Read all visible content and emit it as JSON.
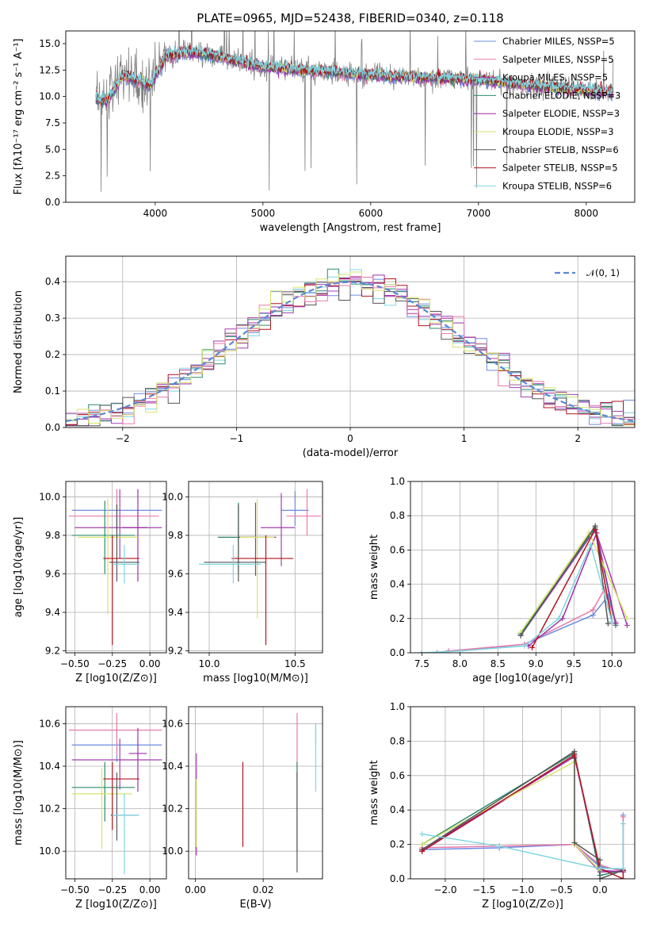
{
  "colors": [
    "#6c8ce0",
    "#e97aa9",
    "#a43fb0",
    "#2d8c6c",
    "#9c2fa6",
    "#d7e36b",
    "#555555",
    "#b3141e",
    "#7fd6df"
  ],
  "chart_data": [
    {
      "type": "line",
      "title": "PLATE=0965, MJD=52438, FIBERID=0340, z=0.118",
      "xlabel": "wavelength [Angstrom, rest frame]",
      "ylabel": "Flux [fλ10⁻¹⁷ erg cm⁻² s⁻¹ A⁻¹]",
      "xlim": [
        3170,
        8450
      ],
      "ylim": [
        0,
        16.2
      ],
      "xticks": [
        "4000",
        "5000",
        "6000",
        "7000",
        "8000"
      ],
      "yticks": [
        "0.0",
        "2.5",
        "5.0",
        "7.5",
        "10.0",
        "12.5",
        "15.0"
      ],
      "grid": false,
      "legend_position": "top-right",
      "legend": [
        "Chabrier MILES, NSSP=5",
        "Salpeter MILES, NSSP=5",
        "Kroupa MILES, NSSP=5",
        "Chabrier ELODIE, NSSP=3",
        "Salpeter ELODIE, NSSP=3",
        "Kroupa ELODIE, NSSP=3",
        "Chabrier STELIB, NSSP=6",
        "Salpeter STELIB, NSSP=5",
        "Kroupa STELIB, NSSP=6"
      ],
      "spectrum_anchors": {
        "wavelength": [
          3450,
          3550,
          3700,
          3850,
          3950,
          4100,
          4300,
          4500,
          5000,
          5500,
          6000,
          6500,
          7000,
          7500,
          8000,
          8250
        ],
        "flux": [
          9.8,
          9.6,
          12.0,
          11.5,
          11.0,
          13.8,
          14.2,
          14.0,
          12.8,
          12.4,
          12.0,
          11.8,
          11.6,
          11.0,
          10.6,
          10.4
        ]
      }
    },
    {
      "type": "histogram",
      "xlabel": "(data-model)/error",
      "ylabel": "Normed distribution",
      "xlim": [
        -2.5,
        2.5
      ],
      "ylim": [
        0,
        0.47
      ],
      "xticks": [
        "−2",
        "−1",
        "0",
        "1",
        "2"
      ],
      "yticks": [
        "0.0",
        "0.1",
        "0.2",
        "0.3",
        "0.4"
      ],
      "grid": true,
      "legend_position": "top-right",
      "legend": [
        "𝒩(0, 1)"
      ],
      "bins": 50,
      "reference_curve": "normal(0,1)"
    },
    {
      "type": "errorbar",
      "xlabel": "Z [log10(Z/Z⊙)]",
      "ylabel": "age  [log10(age/yr)]",
      "xlim": [
        -0.56,
        0.11
      ],
      "ylim": [
        9.19,
        10.08
      ],
      "xticks": [
        "−0.50",
        "−0.25",
        "0.00"
      ],
      "yticks": [
        "9.2",
        "9.4",
        "9.6",
        "9.8",
        "10.0"
      ],
      "grid": true,
      "points": [
        {
          "x": -0.22,
          "y": 9.93,
          "xerr": [
            0.3,
            0.3
          ],
          "yerr": [
            0.1,
            0.1
          ]
        },
        {
          "x": -0.22,
          "y": 9.9,
          "xerr": [
            0.32,
            0.28
          ],
          "yerr": [
            0.1,
            0.14
          ]
        },
        {
          "x": -0.2,
          "y": 9.84,
          "xerr": [
            0.3,
            0.28
          ],
          "yerr": [
            0.16,
            0.2
          ]
        },
        {
          "x": -0.3,
          "y": 9.8,
          "xerr": [
            0.22,
            0.2
          ],
          "yerr": [
            0.2,
            0.18
          ]
        },
        {
          "x": -0.08,
          "y": 9.84,
          "xerr": [
            0.1,
            0.06
          ],
          "yerr": [
            0.28,
            0.2
          ]
        },
        {
          "x": -0.28,
          "y": 9.79,
          "xerr": [
            0.2,
            0.2
          ],
          "yerr": [
            0.4,
            0.2
          ]
        },
        {
          "x": -0.22,
          "y": 9.66,
          "xerr": [
            0.05,
            0.15
          ],
          "yerr": [
            0.1,
            0.3
          ]
        },
        {
          "x": -0.25,
          "y": 9.68,
          "xerr": [
            0.06,
            0.18
          ],
          "yerr": [
            0.45,
            0.12
          ]
        },
        {
          "x": -0.17,
          "y": 9.65,
          "xerr": [
            0.08,
            0.1
          ],
          "yerr": [
            0.1,
            0.1
          ]
        }
      ]
    },
    {
      "type": "errorbar",
      "xlabel": "mass [log10(M/M⊙)]",
      "ylabel": "",
      "xlim": [
        9.88,
        10.66
      ],
      "ylim": [
        9.19,
        10.08
      ],
      "xticks": [
        "10.0",
        "10.5"
      ],
      "yticks": [
        "9.2",
        "9.4",
        "9.6",
        "9.8",
        "10.0"
      ],
      "grid": true,
      "points": [
        {
          "x": 10.5,
          "y": 9.93,
          "xerr": [
            0.08,
            0.08
          ],
          "yerr": [
            0.08,
            0.1
          ]
        },
        {
          "x": 10.57,
          "y": 9.9,
          "xerr": [
            0.12,
            0.08
          ],
          "yerr": [
            0.1,
            0.14
          ]
        },
        {
          "x": 10.42,
          "y": 9.84,
          "xerr": [
            0.12,
            0.08
          ],
          "yerr": [
            0.2,
            0.18
          ]
        },
        {
          "x": 10.17,
          "y": 9.79,
          "xerr": [
            0.12,
            0.1
          ],
          "yerr": [
            0.18,
            0.18
          ]
        },
        {
          "x": 10.27,
          "y": 9.79,
          "xerr": [
            0.1,
            0.12
          ],
          "yerr": [
            0.2,
            0.18
          ]
        },
        {
          "x": 10.28,
          "y": 9.79,
          "xerr": [
            0.1,
            0.1
          ],
          "yerr": [
            0.42,
            0.2
          ]
        },
        {
          "x": 10.17,
          "y": 9.66,
          "xerr": [
            0.2,
            0.16
          ],
          "yerr": [
            0.1,
            0.3
          ]
        },
        {
          "x": 10.33,
          "y": 9.68,
          "xerr": [
            0.2,
            0.16
          ],
          "yerr": [
            0.45,
            0.12
          ]
        },
        {
          "x": 10.14,
          "y": 9.65,
          "xerr": [
            0.2,
            0.16
          ],
          "yerr": [
            0.1,
            0.1
          ]
        }
      ]
    },
    {
      "type": "line",
      "xlabel": "age  [log10(age/yr)]",
      "ylabel": "mass weight",
      "xlim": [
        7.35,
        10.3
      ],
      "ylim": [
        0,
        1.0
      ],
      "xticks": [
        "7.5",
        "8.0",
        "8.5",
        "9.0",
        "9.5",
        "10.0"
      ],
      "yticks": [
        "0.0",
        "0.2",
        "0.4",
        "0.6",
        "0.8",
        "1.0"
      ],
      "grid": true,
      "series": [
        {
          "x": [
            7.5,
            7.7,
            7.85,
            8.0,
            8.85,
            9.75,
            9.95,
            10.05
          ],
          "y": [
            0.0,
            0.0,
            0.01,
            0.01,
            0.05,
            0.22,
            0.33,
            0.18
          ]
        },
        {
          "x": [
            7.5,
            7.7,
            7.85,
            8.85,
            9.75,
            9.9,
            10.05
          ],
          "y": [
            0.0,
            0.0,
            0.01,
            0.05,
            0.25,
            0.37,
            0.18
          ]
        },
        {
          "x": [
            8.8,
            9.78,
            10.2
          ],
          "y": [
            0.1,
            0.72,
            0.16
          ]
        },
        {
          "x": [
            8.8,
            9.78,
            10.05
          ],
          "y": [
            0.11,
            0.73,
            0.16
          ]
        },
        {
          "x": [
            8.9,
            9.35,
            9.8,
            10.05
          ],
          "y": [
            0.04,
            0.2,
            0.7,
            0.17
          ]
        },
        {
          "x": [
            8.8,
            9.7,
            10.2
          ],
          "y": [
            0.12,
            0.7,
            0.2
          ]
        },
        {
          "x": [
            8.8,
            9.78,
            9.95
          ],
          "y": [
            0.1,
            0.74,
            0.17
          ]
        },
        {
          "x": [
            8.95,
            9.78,
            10.0
          ],
          "y": [
            0.03,
            0.72,
            0.18
          ]
        },
        {
          "x": [
            7.5,
            8.0,
            8.85,
            9.3,
            9.72,
            10.0
          ],
          "y": [
            0.0,
            0.01,
            0.04,
            0.2,
            0.63,
            0.18
          ]
        }
      ]
    },
    {
      "type": "errorbar",
      "xlabel": "Z [log10(Z/Z⊙)]",
      "ylabel": "mass [log10(M/M⊙)]",
      "xlim": [
        -0.56,
        0.11
      ],
      "ylim": [
        9.87,
        10.68
      ],
      "xticks": [
        "−0.50",
        "−0.25",
        "0.00"
      ],
      "yticks": [
        "10.0",
        "10.2",
        "10.4",
        "10.6"
      ],
      "grid": true,
      "points": [
        {
          "x": -0.22,
          "y": 10.5,
          "xerr": [
            0.3,
            0.3
          ],
          "yerr": [
            0.08,
            0.08
          ]
        },
        {
          "x": -0.22,
          "y": 10.57,
          "xerr": [
            0.32,
            0.3
          ],
          "yerr": [
            0.12,
            0.08
          ]
        },
        {
          "x": -0.2,
          "y": 10.43,
          "xerr": [
            0.32,
            0.28
          ],
          "yerr": [
            0.14,
            0.1
          ]
        },
        {
          "x": -0.3,
          "y": 10.3,
          "xerr": [
            0.22,
            0.2
          ],
          "yerr": [
            0.16,
            0.12
          ]
        },
        {
          "x": -0.08,
          "y": 10.46,
          "xerr": [
            0.06,
            0.06
          ],
          "yerr": [
            0.18,
            0.12
          ]
        },
        {
          "x": -0.32,
          "y": 10.27,
          "xerr": [
            0.2,
            0.2
          ],
          "yerr": [
            0.26,
            0.12
          ]
        },
        {
          "x": -0.22,
          "y": 10.17,
          "xerr": [
            0.04,
            0.14
          ],
          "yerr": [
            0.12,
            0.2
          ]
        },
        {
          "x": -0.25,
          "y": 10.34,
          "xerr": [
            0.06,
            0.18
          ],
          "yerr": [
            0.24,
            0.08
          ]
        },
        {
          "x": -0.17,
          "y": 10.17,
          "xerr": [
            0.08,
            0.1
          ],
          "yerr": [
            0.28,
            0.1
          ]
        }
      ]
    },
    {
      "type": "errorbar",
      "xlabel": "E(B-V)",
      "ylabel": "",
      "xlim": [
        -0.002,
        0.0375
      ],
      "ylim": [
        9.87,
        10.68
      ],
      "xticks": [
        "0.00",
        "0.02"
      ],
      "yticks": [
        "10.0",
        "10.2",
        "10.4",
        "10.6"
      ],
      "grid": true,
      "points": [
        {
          "x": 0.0355,
          "y": 10.5,
          "xerr": [
            0,
            0
          ],
          "yerr": [
            0.0,
            0.1
          ]
        },
        {
          "x": 0.03,
          "y": 10.57,
          "xerr": [
            0,
            0
          ],
          "yerr": [
            0.24,
            0.08
          ]
        },
        {
          "x": 0.0003,
          "y": 10.43,
          "xerr": [
            0,
            0
          ],
          "yerr": [
            0.08,
            0.03
          ]
        },
        {
          "x": 0.03,
          "y": 10.3,
          "xerr": [
            0,
            0
          ],
          "yerr": [
            0.3,
            0.12
          ]
        },
        {
          "x": 0.0003,
          "y": 10.3,
          "xerr": [
            0,
            0
          ],
          "yerr": [
            0.32,
            0.05
          ]
        },
        {
          "x": 0.0003,
          "y": 10.27,
          "xerr": [
            0,
            0
          ],
          "yerr": [
            0.25,
            0.07
          ]
        },
        {
          "x": 0.03,
          "y": 10.17,
          "xerr": [
            0,
            0
          ],
          "yerr": [
            0.27,
            0.2
          ]
        },
        {
          "x": 0.014,
          "y": 10.34,
          "xerr": [
            0,
            0
          ],
          "yerr": [
            0.32,
            0.08
          ]
        },
        {
          "x": 0.0355,
          "y": 10.48,
          "xerr": [
            0,
            0
          ],
          "yerr": [
            0.2,
            0.12
          ]
        }
      ]
    },
    {
      "type": "line",
      "xlabel": "Z [log10(Z/Z⊙)]",
      "ylabel": "mass weight",
      "xlim": [
        -2.45,
        0.45
      ],
      "ylim": [
        0,
        1.0
      ],
      "xticks": [
        "−2.0",
        "−1.5",
        "−1.0",
        "−0.5",
        "0.0"
      ],
      "yticks": [
        "0.0",
        "0.2",
        "0.4",
        "0.6",
        "0.8",
        "1.0"
      ],
      "grid": true,
      "series": [
        {
          "x": [
            -2.3,
            -1.3,
            -0.33,
            0.0,
            0.3,
            0.3
          ],
          "y": [
            0.17,
            0.18,
            0.2,
            0.07,
            0.05,
            0.37
          ]
        },
        {
          "x": [
            -2.3,
            -1.3,
            -0.33,
            0.0,
            0.3,
            0.3
          ],
          "y": [
            0.18,
            0.19,
            0.2,
            0.08,
            0.04,
            0.36
          ]
        },
        {
          "x": [
            -2.3,
            -0.33,
            -0.33,
            0.0,
            0.3
          ],
          "y": [
            0.16,
            0.71,
            0.2,
            0.04,
            0.04
          ]
        },
        {
          "x": [
            -2.3,
            -0.33,
            0.0,
            0.3
          ],
          "y": [
            0.2,
            0.73,
            0.02,
            0.05
          ]
        },
        {
          "x": [
            -2.3,
            -0.33,
            0.0,
            0.3
          ],
          "y": [
            0.17,
            0.71,
            0.05,
            0.04
          ]
        },
        {
          "x": [
            -2.3,
            -0.33,
            -0.33,
            0.0
          ],
          "y": [
            0.2,
            0.68,
            0.2,
            0.05
          ]
        },
        {
          "x": [
            -2.3,
            -0.33,
            -0.33,
            -0.33,
            0.0,
            0.0,
            0.3
          ],
          "y": [
            0.17,
            0.74,
            0.7,
            0.21,
            0.11,
            0.0,
            0.05
          ]
        },
        {
          "x": [
            -2.3,
            -0.33,
            0.0,
            0.3,
            0.3
          ],
          "y": [
            0.16,
            0.72,
            0.06,
            0.0,
            0.05
          ]
        },
        {
          "x": [
            -2.3,
            -1.3,
            0.0,
            0.3,
            0.3
          ],
          "y": [
            0.26,
            0.19,
            0.06,
            0.06,
            0.32
          ]
        }
      ]
    }
  ]
}
